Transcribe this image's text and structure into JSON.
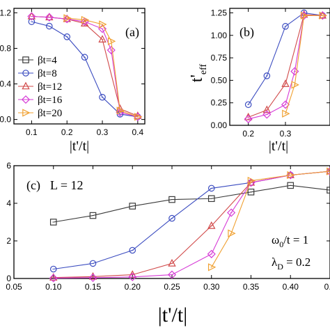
{
  "colors": {
    "bt4": "#3a3a3a",
    "bt8": "#3b4cc0",
    "bt12": "#d14a4a",
    "bt16": "#d63ad6",
    "bt20": "#f0a030"
  },
  "chart_data": [
    {
      "type": "line",
      "panel_label": "(a)",
      "ylabel": "",
      "xlabel": "|t'/t|",
      "xlim": [
        0.05,
        0.42
      ],
      "ylim": [
        -0.05,
        1.25
      ],
      "x_ticks": [
        "0.1",
        "0.2",
        "0.3",
        "0.4"
      ],
      "y_ticks": [
        "0.0",
        "0.4",
        "0.8",
        "1.2"
      ],
      "legend": [
        "βt=4",
        "βt=8",
        "βt=12",
        "βt=16",
        "βt=20"
      ],
      "series": [
        {
          "name": "βt=8",
          "marker": "circle",
          "color_key": "bt8",
          "x": [
            0.1,
            0.15,
            0.2,
            0.25,
            0.3,
            0.35,
            0.4
          ],
          "y": [
            1.1,
            1.05,
            0.93,
            0.7,
            0.25,
            0.06,
            0.03
          ]
        },
        {
          "name": "βt=12",
          "marker": "triangle",
          "color_key": "bt12",
          "x": [
            0.1,
            0.15,
            0.2,
            0.25,
            0.3,
            0.35,
            0.4
          ],
          "y": [
            1.16,
            1.15,
            1.13,
            1.08,
            0.9,
            0.12,
            0.04
          ]
        },
        {
          "name": "βt=16",
          "marker": "diamond",
          "color_key": "bt16",
          "x": [
            0.1,
            0.15,
            0.2,
            0.25,
            0.3,
            0.325,
            0.35,
            0.4
          ],
          "y": [
            1.16,
            1.15,
            1.13,
            1.1,
            1.02,
            0.78,
            0.08,
            0.03
          ]
        },
        {
          "name": "βt=20",
          "marker": "triangle-right",
          "color_key": "bt20",
          "x": [
            0.2,
            0.25,
            0.3,
            0.325,
            0.35,
            0.4
          ],
          "y": [
            1.14,
            1.12,
            1.07,
            0.88,
            0.1,
            0.03
          ]
        }
      ]
    },
    {
      "type": "line",
      "panel_label": "(b)",
      "ylabel": "t'",
      "ylabel_sub": "eff",
      "xlabel": "|t'/t|",
      "xlim": [
        0.15,
        0.42
      ],
      "ylim": [
        0.0,
        1.3
      ],
      "x_ticks": [
        "0.2",
        "0.3"
      ],
      "y_ticks": [
        "0.00",
        "0.25",
        "0.50",
        "0.75",
        "1.00",
        "1.25"
      ],
      "series": [
        {
          "name": "βt=8",
          "marker": "circle",
          "color_key": "bt8",
          "x": [
            0.2,
            0.25,
            0.3,
            0.35,
            0.4
          ],
          "y": [
            0.23,
            0.55,
            1.1,
            1.25,
            1.22
          ]
        },
        {
          "name": "βt=12",
          "marker": "triangle",
          "color_key": "bt12",
          "x": [
            0.2,
            0.25,
            0.3,
            0.35,
            0.4
          ],
          "y": [
            0.09,
            0.17,
            0.46,
            1.23,
            1.22
          ]
        },
        {
          "name": "βt=16",
          "marker": "diamond",
          "color_key": "bt16",
          "x": [
            0.2,
            0.25,
            0.3,
            0.325,
            0.35,
            0.4
          ],
          "y": [
            0.07,
            0.12,
            0.23,
            0.6,
            1.22,
            1.22
          ]
        },
        {
          "name": "βt=20",
          "marker": "triangle-right",
          "color_key": "bt20",
          "x": [
            0.3,
            0.325,
            0.35,
            0.4
          ],
          "y": [
            0.13,
            0.45,
            1.22,
            1.22
          ]
        }
      ]
    },
    {
      "type": "line",
      "panel_label": "(c)",
      "annotation_L": "L = 12",
      "annotation_omega": "ω",
      "annotation_omega_sub": "0",
      "annotation_omega_rest": "/t = 1",
      "annotation_lambda": "λ",
      "annotation_lambda_sub": "D",
      "annotation_lambda_rest": " = 0.2",
      "ylabel": "",
      "xlabel": "|t'/t|",
      "xlim": [
        0.05,
        0.45
      ],
      "ylim": [
        0.0,
        0.6
      ],
      "x_ticks": [
        "0.05",
        "0.10",
        "0.15",
        "0.20",
        "0.25",
        "0.30",
        "0.35",
        "0.40",
        "0.4"
      ],
      "y_ticks": [
        "0",
        "2",
        "4",
        "6"
      ],
      "series": [
        {
          "name": "βt=4",
          "marker": "square",
          "color_key": "bt4",
          "x": [
            0.1,
            0.15,
            0.2,
            0.25,
            0.3,
            0.35,
            0.4,
            0.45
          ],
          "y": [
            0.3,
            0.335,
            0.385,
            0.42,
            0.425,
            0.46,
            0.495,
            0.47
          ]
        },
        {
          "name": "βt=8",
          "marker": "circle",
          "color_key": "bt8",
          "x": [
            0.1,
            0.15,
            0.2,
            0.25,
            0.3,
            0.35,
            0.4,
            0.45
          ],
          "y": [
            0.05,
            0.08,
            0.15,
            0.32,
            0.48,
            0.51,
            0.55,
            0.57
          ]
        },
        {
          "name": "βt=12",
          "marker": "triangle",
          "color_key": "bt12",
          "x": [
            0.1,
            0.15,
            0.2,
            0.25,
            0.3,
            0.35,
            0.4,
            0.45
          ],
          "y": [
            0.005,
            0.01,
            0.02,
            0.08,
            0.28,
            0.51,
            0.55,
            0.57
          ]
        },
        {
          "name": "βt=16",
          "marker": "diamond",
          "color_key": "bt16",
          "x": [
            0.1,
            0.15,
            0.2,
            0.25,
            0.3,
            0.325,
            0.35,
            0.4,
            0.45
          ],
          "y": [
            0.002,
            0.004,
            0.008,
            0.02,
            0.13,
            0.35,
            0.51,
            0.55,
            0.57
          ]
        },
        {
          "name": "βt=20",
          "marker": "triangle-right",
          "color_key": "bt20",
          "x": [
            0.3,
            0.325,
            0.35,
            0.4,
            0.45
          ],
          "y": [
            0.06,
            0.24,
            0.52,
            0.55,
            0.57
          ]
        }
      ]
    }
  ]
}
